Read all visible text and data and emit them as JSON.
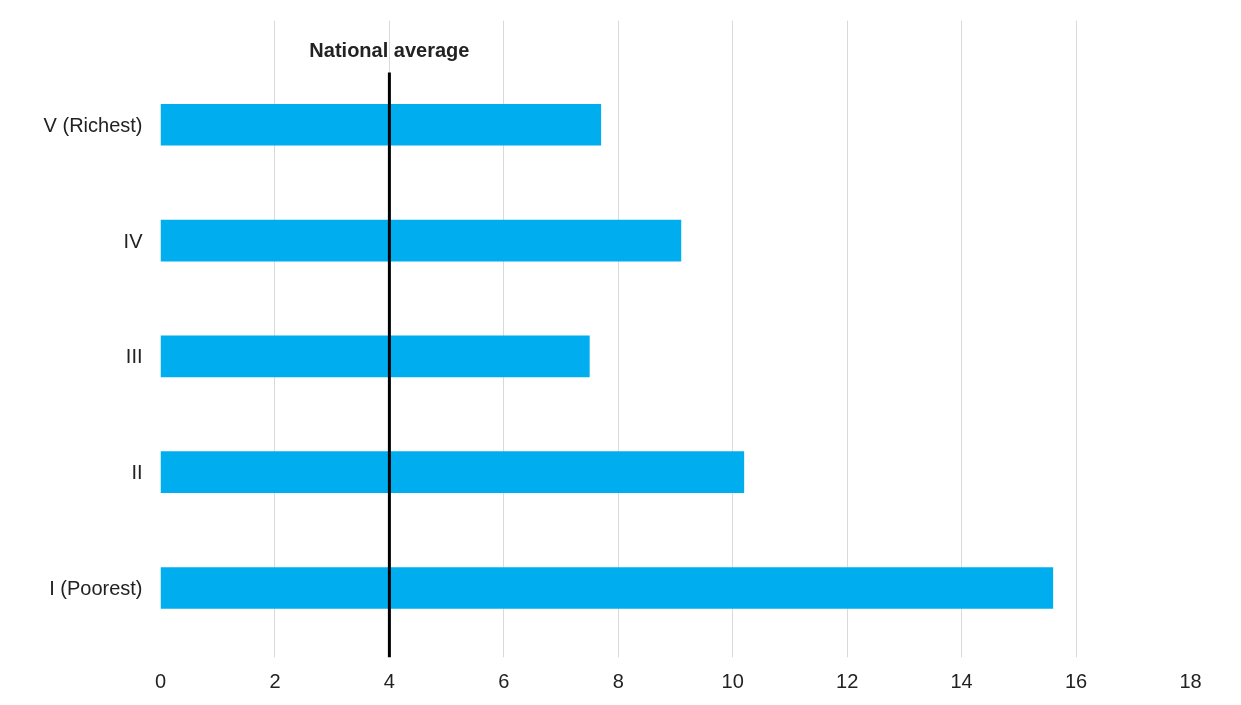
{
  "chart_data": {
    "type": "bar",
    "orientation": "horizontal",
    "categories": [
      "V (Richest)",
      "IV",
      "III",
      "II",
      "I (Poorest)"
    ],
    "values": [
      7.7,
      9.1,
      7.5,
      10.2,
      15.6
    ],
    "color": "#00aeef",
    "xlim": [
      0,
      18
    ],
    "xticks": [
      0,
      2,
      4,
      6,
      8,
      10,
      12,
      14,
      16,
      18
    ],
    "grid": "x",
    "ref_lines": [
      {
        "axis": "x",
        "value": 4.0,
        "label": "National average",
        "color": "#000000"
      }
    ]
  }
}
